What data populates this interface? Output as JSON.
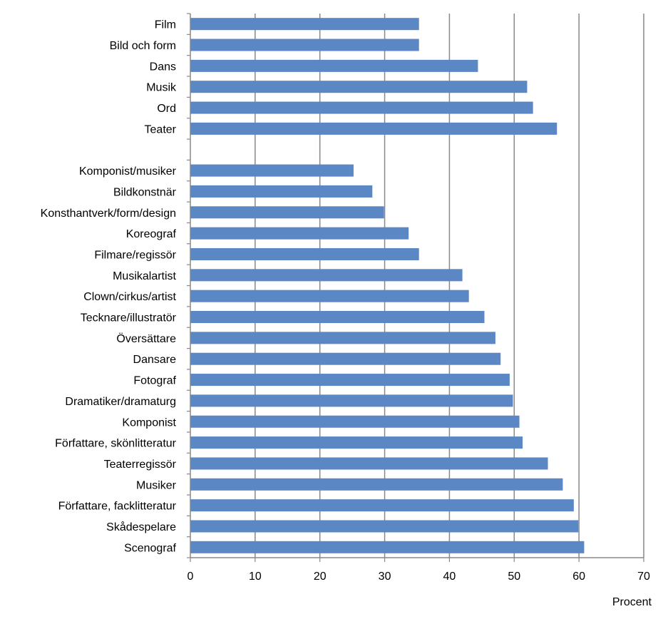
{
  "chart_data": {
    "type": "bar",
    "orientation": "horizontal",
    "xlabel": "Procent",
    "xlim": [
      0,
      70
    ],
    "xticks": [
      0,
      10,
      20,
      30,
      40,
      50,
      60,
      70
    ],
    "grid": "vertical",
    "bar_color": "#5B87C5",
    "gridline_color": "#888888",
    "rows": [
      {
        "label": "Film",
        "value": 35.3
      },
      {
        "label": "Bild och form",
        "value": 35.3
      },
      {
        "label": "Dans",
        "value": 44.4
      },
      {
        "label": "Musik",
        "value": 52.0
      },
      {
        "label": "Ord",
        "value": 52.9
      },
      {
        "label": "Teater",
        "value": 56.6
      },
      {
        "label": "",
        "value": null
      },
      {
        "label": "Komponist/musiker",
        "value": 25.2
      },
      {
        "label": "Bildkonstnär",
        "value": 28.1
      },
      {
        "label": "Konsthantverk/form/design",
        "value": 29.9
      },
      {
        "label": "Koreograf",
        "value": 33.7
      },
      {
        "label": "Filmare/regissör",
        "value": 35.3
      },
      {
        "label": "Musikalartist",
        "value": 42.0
      },
      {
        "label": "Clown/cirkus/artist",
        "value": 43.0
      },
      {
        "label": "Tecknare/illustratör",
        "value": 45.4
      },
      {
        "label": "Översättare",
        "value": 47.1
      },
      {
        "label": "Dansare",
        "value": 47.9
      },
      {
        "label": "Fotograf",
        "value": 49.3
      },
      {
        "label": "Dramatiker/dramaturg",
        "value": 49.8
      },
      {
        "label": "Komponist",
        "value": 50.8
      },
      {
        "label": "Författare, skönlitteratur",
        "value": 51.3
      },
      {
        "label": "Teaterregissör",
        "value": 55.2
      },
      {
        "label": "Musiker",
        "value": 57.5
      },
      {
        "label": "Författare, facklitteratur",
        "value": 59.2
      },
      {
        "label": "Skådespelare",
        "value": 59.9
      },
      {
        "label": "Scenograf",
        "value": 60.8
      }
    ]
  }
}
